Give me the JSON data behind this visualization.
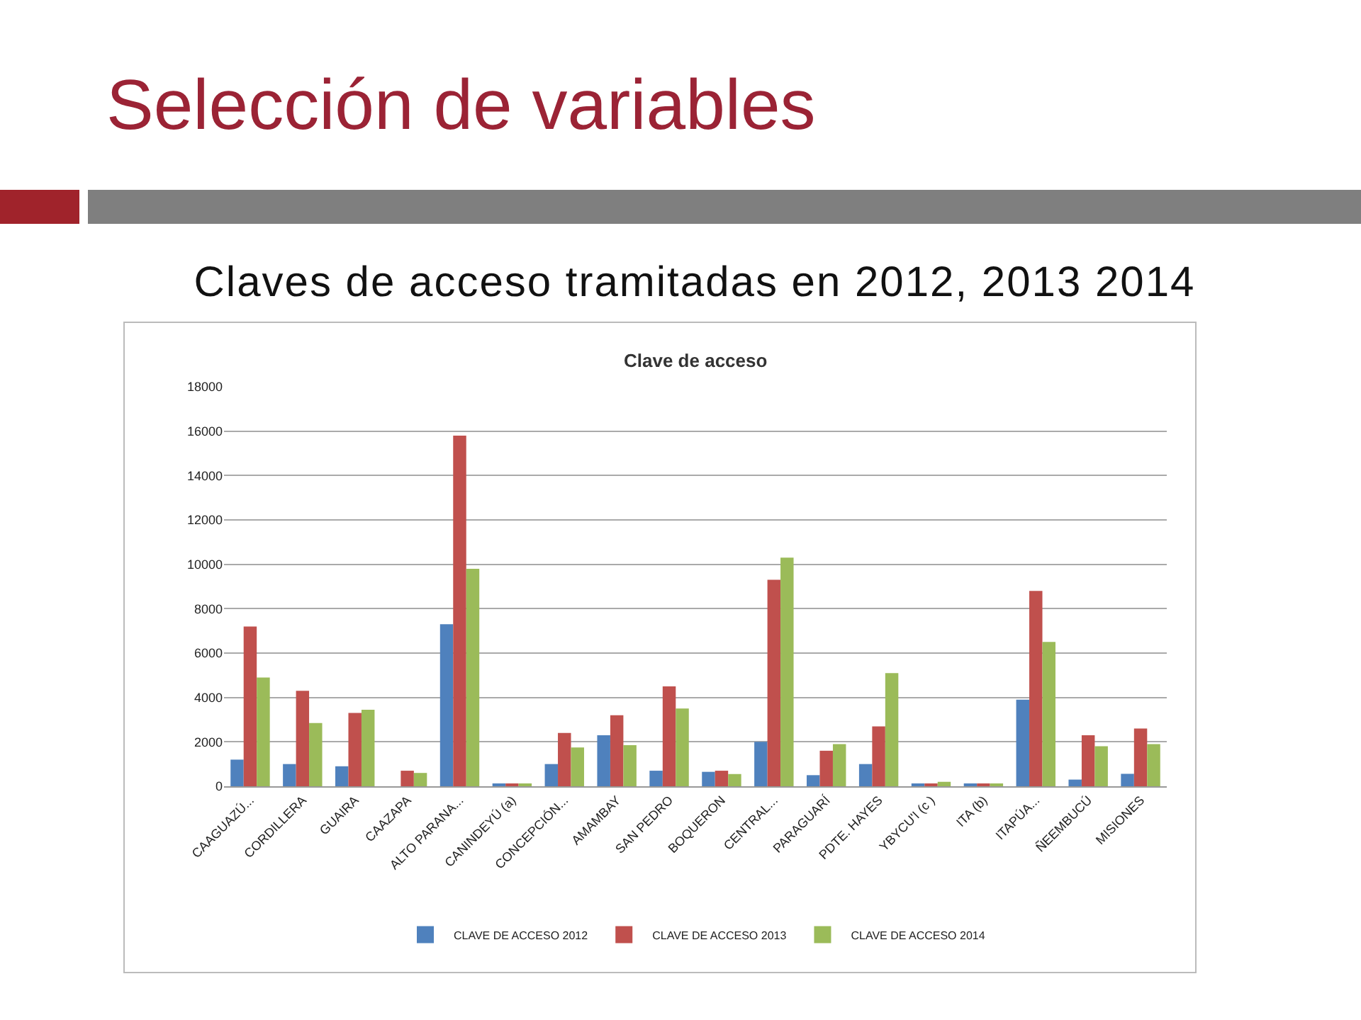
{
  "chart_data": {
    "type": "bar",
    "title": "Selección de variables",
    "subtitle": "Claves de acceso tramitadas en 2012, 2013 2014",
    "annotations": [
      "Clave de acceso"
    ],
    "categories": [
      "CAAGUAZÚ...",
      "CORDILLERA",
      "GUAIRA",
      "CAAZAPA",
      "ALTO PARANA...",
      "CANINDEYÚ (a)",
      "CONCEPCIÓN...",
      "AMAMBAY",
      "SAN PEDRO",
      "BOQUERON",
      "CENTRAL...",
      "PARAGUARÍ",
      "PDTE. HAYES",
      "YBYCU'I (c )",
      "ITA (b)",
      "ITAPÚA...",
      "ÑEEMBUCÚ",
      "MISIONES"
    ],
    "series": [
      {
        "name": "CLAVE DE ACCESO 2012",
        "color": "#4f81bd",
        "values": [
          1200,
          1000,
          900,
          0,
          7300,
          100,
          1000,
          2300,
          700,
          650,
          2000,
          500,
          1000,
          100,
          100,
          3900,
          300,
          560
        ]
      },
      {
        "name": "CLAVE DE ACCESO 2013",
        "color": "#c0504d",
        "values": [
          7200,
          4300,
          3300,
          700,
          15800,
          100,
          2400,
          3200,
          4500,
          700,
          9300,
          1600,
          2700,
          100,
          100,
          8800,
          2300,
          2600
        ]
      },
      {
        "name": "CLAVE DE ACCESO 2014",
        "color": "#9bbb59",
        "values": [
          4900,
          2850,
          3450,
          600,
          9800,
          100,
          1750,
          1850,
          3500,
          550,
          10300,
          1900,
          5100,
          200,
          100,
          6500,
          1800,
          1900
        ]
      }
    ],
    "ylim": [
      0,
      18000
    ],
    "yticks": [
      0,
      2000,
      4000,
      6000,
      8000,
      10000,
      12000,
      14000,
      16000,
      18000
    ],
    "grid": "y",
    "legend": "bottom"
  }
}
